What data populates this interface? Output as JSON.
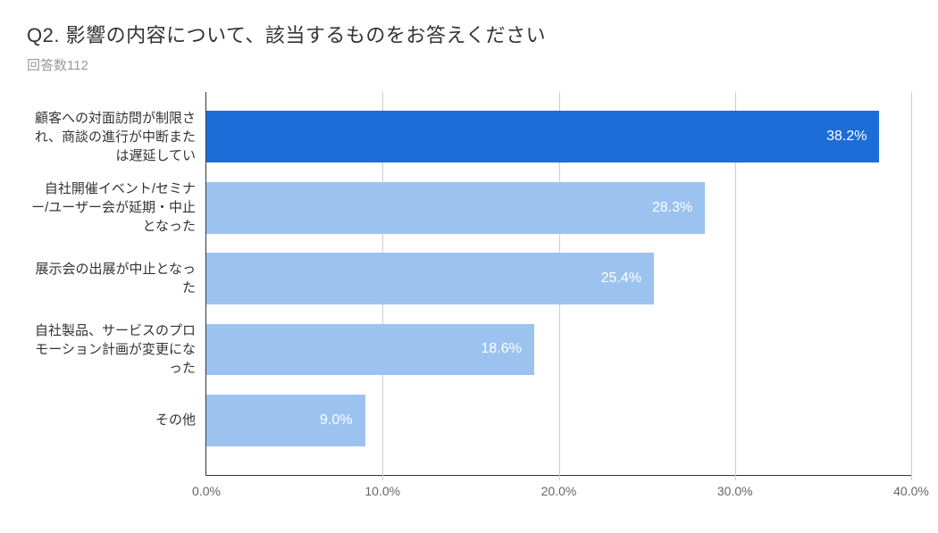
{
  "title": "Q2. 影響の内容について、該当するものをお答えください",
  "subtitle": "回答数112",
  "chart": {
    "type": "bar-horizontal",
    "xlim": [
      0,
      40
    ],
    "xtick_step": 10,
    "xtick_suffix": ".0%",
    "xtick_labels": [
      "0.0%",
      "10.0%",
      "20.0%",
      "30.0%",
      "40.0%"
    ],
    "bar_height_pct": 13.5,
    "bar_gap_pct": 5.0,
    "bar_first_offset_pct": 5.0,
    "background_color": "#ffffff",
    "grid_color": "#cccccc",
    "axis_color": "#333333",
    "label_color": "#333333",
    "tick_color": "#666666",
    "label_fontsize": 15,
    "tick_fontsize": 14,
    "value_label_fontsize": 16,
    "value_label_color": "#ffffff",
    "bars": [
      {
        "label": "顧客への対面訪問が制限され、商談の進行が中断または遅延してい",
        "value": 38.2,
        "value_label": "38.2%",
        "color": "#1d6dd8"
      },
      {
        "label": "自社開催イベント/セミナー/ユーザー会が延期・中止となった",
        "value": 28.3,
        "value_label": "28.3%",
        "color": "#9cc3f0"
      },
      {
        "label": "展示会の出展が中止となった",
        "value": 25.4,
        "value_label": "25.4%",
        "color": "#9cc3f0"
      },
      {
        "label": "自社製品、サービスのプロモーション計画が変更になった",
        "value": 18.6,
        "value_label": "18.6%",
        "color": "#9cc3f0"
      },
      {
        "label": "その他",
        "value": 9.0,
        "value_label": "9.0%",
        "color": "#9cc3f0"
      }
    ]
  }
}
